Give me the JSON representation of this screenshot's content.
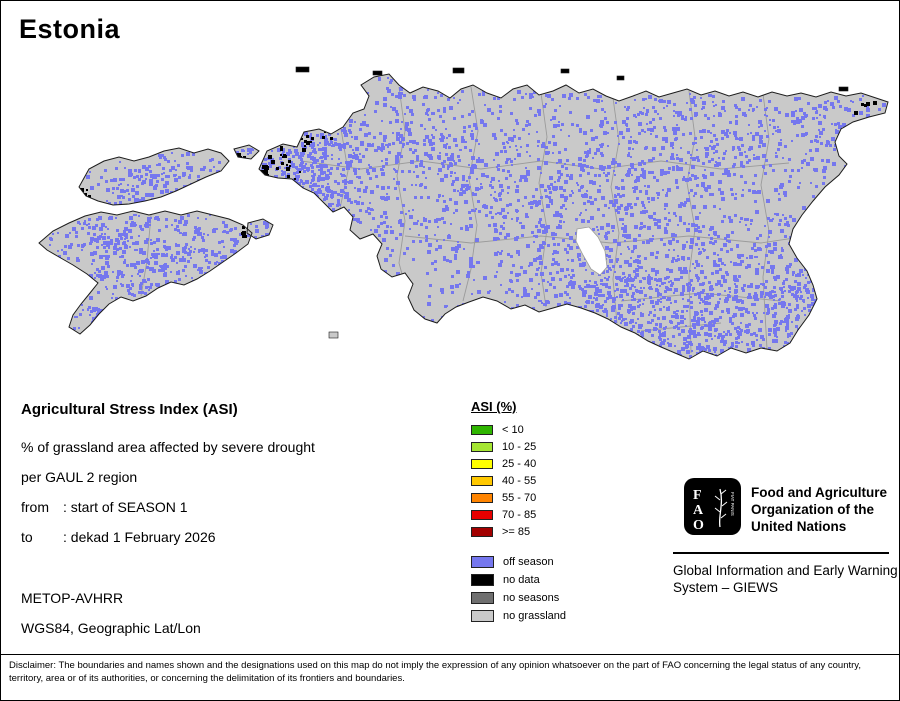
{
  "title": "Estonia",
  "map": {
    "colors": {
      "land": "#c9c9c9",
      "off_season": "#7577ee",
      "no_data": "#000000",
      "no_seasons": "#6f6f6f",
      "boundary": "#9b9b9b",
      "outline": "#1c1c1c",
      "water": "#ffffff"
    }
  },
  "info": {
    "heading": "Agricultural Stress Index (ASI)",
    "line1": "% of grassland area affected by severe drought",
    "line2": "per GAUL 2 region",
    "from_label": "from",
    "from_value": ": start of SEASON 1",
    "to_label": "to",
    "to_value": ": dekad 1 February 2026",
    "sensor": "METOP-AVHRR",
    "projection": "WGS84, Geographic Lat/Lon"
  },
  "legend": {
    "title": "ASI (%)",
    "classes": [
      {
        "label": "< 10",
        "color": "#2fb500"
      },
      {
        "label": "10 - 25",
        "color": "#a5e632"
      },
      {
        "label": "25 - 40",
        "color": "#ffff00"
      },
      {
        "label": "40 - 55",
        "color": "#ffc800"
      },
      {
        "label": "55 - 70",
        "color": "#ff8400"
      },
      {
        "label": "70 - 85",
        "color": "#e60000"
      },
      {
        "label": ">= 85",
        "color": "#a30000"
      }
    ],
    "extras": [
      {
        "label": "off season",
        "color": "#7577ee"
      },
      {
        "label": "no data",
        "color": "#000000"
      },
      {
        "label": "no seasons",
        "color": "#6f6f6f"
      },
      {
        "label": "no grassland",
        "color": "#c9c9c9"
      }
    ]
  },
  "footer": {
    "fao_logo_letters": "FAO",
    "fao_logo_motto": "FIAT PANIS",
    "fao_name": "Food and Agriculture Organization of the United Nations",
    "giews": "Global Information and Early Warning System – GIEWS",
    "disclaimer": "Disclaimer: The boundaries and names shown and the designations used on this map do not imply the expression of any opinion whatsoever on the part of FAO concerning the legal status of any country, territory, area or of its authorities, or concerning the delimitation of its frontiers and boundaries."
  }
}
